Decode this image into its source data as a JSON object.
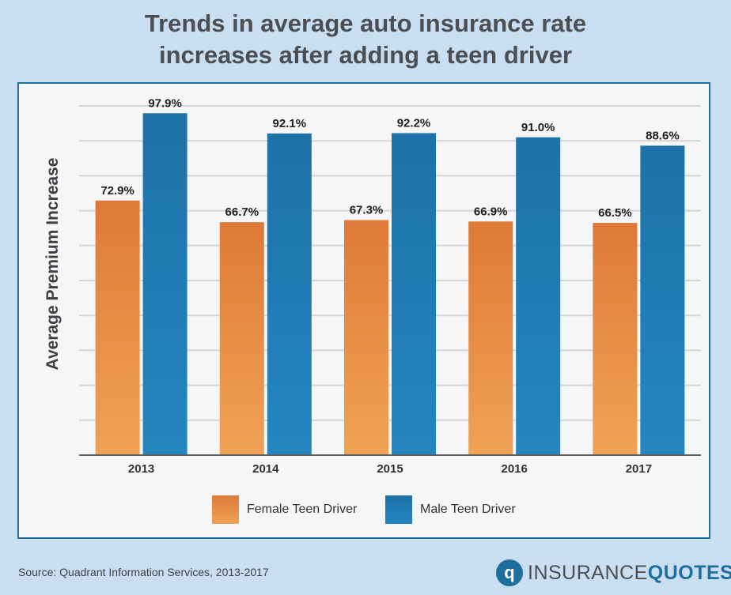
{
  "title_line1": "Trends in average auto insurance rate",
  "title_line2": "increases after adding a teen driver",
  "source": "Source:  Quadrant Information Services, 2013-2017",
  "logo": {
    "part1": "INSURANCE",
    "part2": "QUOTES",
    "icon": "iq-circle-icon",
    "icon_glyph": "q"
  },
  "colors": {
    "female": "#e8873f",
    "male": "#1f78b0",
    "panel_border": "#1f6f9e",
    "background": "#c9def0"
  },
  "chart_data": {
    "type": "bar",
    "title": "Trends in average auto insurance rate increases after adding a teen driver",
    "ylabel": "Average Premium Increase",
    "xlabel": "",
    "categories": [
      "2013",
      "2014",
      "2015",
      "2016",
      "2017"
    ],
    "series": [
      {
        "name": "Female Teen Driver",
        "values": [
          72.9,
          66.7,
          67.3,
          66.9,
          66.5
        ],
        "labels": [
          "72.9%",
          "66.7%",
          "67.3%",
          "66.9%",
          "66.5%"
        ],
        "color": "#e8873f"
      },
      {
        "name": "Male Teen Driver",
        "values": [
          97.9,
          92.1,
          92.2,
          91.0,
          88.6
        ],
        "labels": [
          "97.9%",
          "92.1%",
          "92.2%",
          "91.0%",
          "88.6%"
        ],
        "color": "#1f78b0"
      }
    ],
    "ylim": [
      0,
      100
    ],
    "grid": true,
    "legend": "bottom"
  }
}
